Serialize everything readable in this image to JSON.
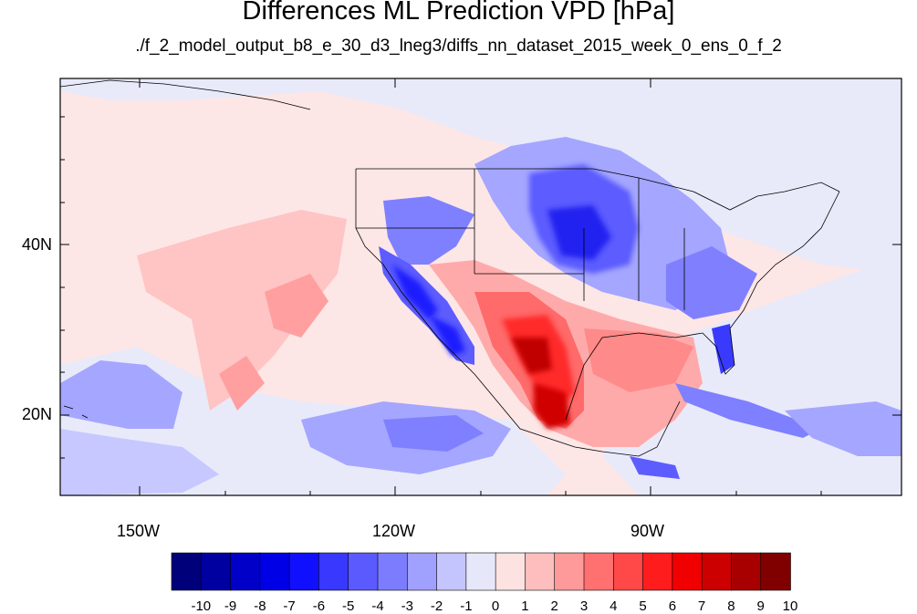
{
  "title": "Differences ML Prediction VPD [hPa]",
  "subtitle": "./f_2_model_output_b8_e_30_d3_lneg3/diffs_nn_dataset_2015_week_0_ens_0_f_2",
  "lon_labels": [
    "150W",
    "120W",
    "90W"
  ],
  "lat_labels": [
    "40N",
    "20N"
  ],
  "colorbar": {
    "labels": [
      "-10",
      "-9",
      "-8",
      "-7",
      "-6",
      "-5",
      "-4",
      "-3",
      "-2",
      "-1",
      "0",
      "1",
      "2",
      "3",
      "4",
      "5",
      "6",
      "7",
      "8",
      "9",
      "10"
    ],
    "colors": [
      "#00007a",
      "#0000a0",
      "#0000c8",
      "#0000e6",
      "#1010ff",
      "#3838ff",
      "#5a5aff",
      "#7c7cff",
      "#a0a0ff",
      "#c4c4ff",
      "#e6e8fa",
      "#fde2e2",
      "#ffbebe",
      "#ff9a9a",
      "#ff7070",
      "#ff4848",
      "#ff1c1c",
      "#f00000",
      "#cc0000",
      "#a80000",
      "#800000"
    ]
  }
}
